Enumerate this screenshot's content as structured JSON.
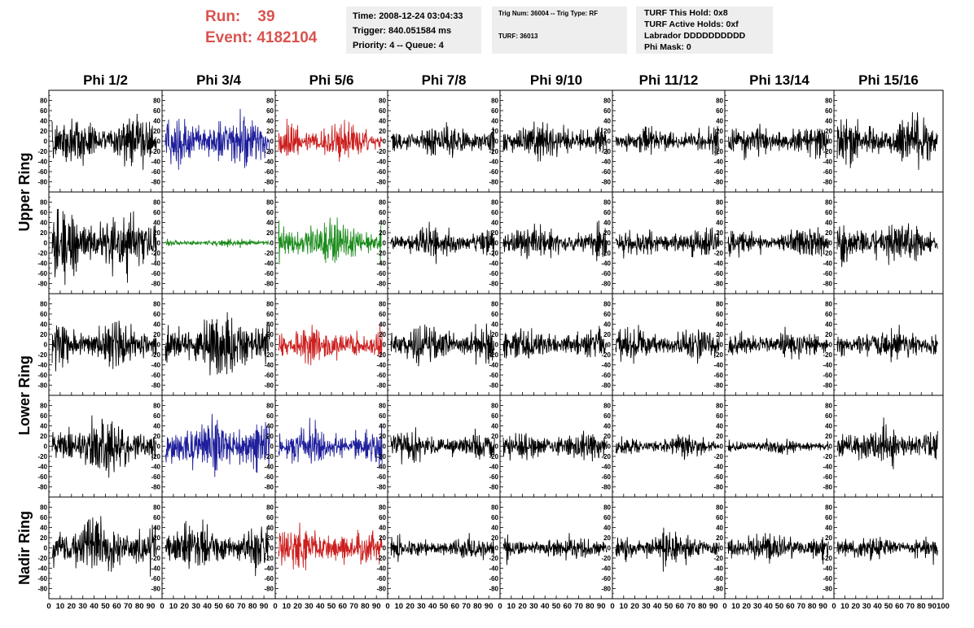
{
  "header": {
    "run_label": "Run:",
    "run_value": "39",
    "event_label": "Event:",
    "event_value": "4182104",
    "time": "Time: 2008-12-24 03:04:33",
    "trigger": "Trigger: 840.051584 ms",
    "priority": "Priority: 4 -- Queue: 4",
    "trig_num": "Trig Num: 36004 -- Trig Type: RF",
    "turf": "TURF: 36013",
    "turf_hold": "TURF This Hold: 0x8",
    "turf_active": "TURF Active Holds: 0xf",
    "labrador": "Labrador DDDDDDDDDD",
    "phi_mask": "Phi Mask: 0"
  },
  "colors": {
    "black": "#000000",
    "blue": "#1f1f9c",
    "red": "#cc1f1f",
    "green": "#1c8c1c",
    "header_red": "#d9534f"
  },
  "chart_data": {
    "type": "line",
    "columns": [
      "Phi 1/2",
      "Phi 3/4",
      "Phi 5/6",
      "Phi 7/8",
      "Phi 9/10",
      "Phi 11/12",
      "Phi 13/14",
      "Phi 15/16"
    ],
    "rings": [
      "Upper Ring",
      "Lower Ring",
      "Nadir Ring"
    ],
    "ring_rows": [
      2,
      2,
      1
    ],
    "ylim": [
      -100,
      100
    ],
    "yticks": [
      -80,
      -60,
      -40,
      -20,
      0,
      20,
      40,
      60,
      80
    ],
    "xlim": [
      0,
      100
    ],
    "xticks": [
      0,
      10,
      20,
      30,
      40,
      50,
      60,
      70,
      80,
      90,
      100
    ],
    "x_tick_labels": [
      "0",
      "10",
      "20",
      "30",
      "40",
      "50",
      "60",
      "70",
      "80",
      "90",
      "100"
    ],
    "samples_per_trace": 260,
    "grid": false,
    "waveforms": [
      [
        {
          "color": "black",
          "amp": 18
        },
        {
          "color": "blue",
          "amp": 19
        },
        {
          "color": "red",
          "amp": 15
        },
        {
          "color": "black",
          "amp": 13
        },
        {
          "color": "black",
          "amp": 14
        },
        {
          "color": "black",
          "amp": 10
        },
        {
          "color": "black",
          "amp": 12
        },
        {
          "color": "black",
          "amp": 16
        }
      ],
      [
        {
          "color": "black",
          "amp": 24
        },
        {
          "color": "green",
          "amp": 3
        },
        {
          "color": "green",
          "amp": 17
        },
        {
          "color": "black",
          "amp": 11
        },
        {
          "color": "black",
          "amp": 12
        },
        {
          "color": "black",
          "amp": 11
        },
        {
          "color": "black",
          "amp": 10
        },
        {
          "color": "black",
          "amp": 15
        }
      ],
      [
        {
          "color": "black",
          "amp": 18
        },
        {
          "color": "black",
          "amp": 22
        },
        {
          "color": "red",
          "amp": 14
        },
        {
          "color": "black",
          "amp": 14
        },
        {
          "color": "black",
          "amp": 12
        },
        {
          "color": "black",
          "amp": 12
        },
        {
          "color": "black",
          "amp": 11
        },
        {
          "color": "black",
          "amp": 12
        }
      ],
      [
        {
          "color": "black",
          "amp": 21
        },
        {
          "color": "blue",
          "amp": 22
        },
        {
          "color": "blue",
          "amp": 15
        },
        {
          "color": "black",
          "amp": 11
        },
        {
          "color": "black",
          "amp": 11
        },
        {
          "color": "black",
          "amp": 8
        },
        {
          "color": "black",
          "amp": 6
        },
        {
          "color": "black",
          "amp": 14
        }
      ],
      [
        {
          "color": "black",
          "amp": 21
        },
        {
          "color": "black",
          "amp": 17
        },
        {
          "color": "red",
          "amp": 15
        },
        {
          "color": "black",
          "amp": 8
        },
        {
          "color": "black",
          "amp": 9
        },
        {
          "color": "black",
          "amp": 12
        },
        {
          "color": "black",
          "amp": 11
        },
        {
          "color": "black",
          "amp": 9
        }
      ]
    ]
  }
}
